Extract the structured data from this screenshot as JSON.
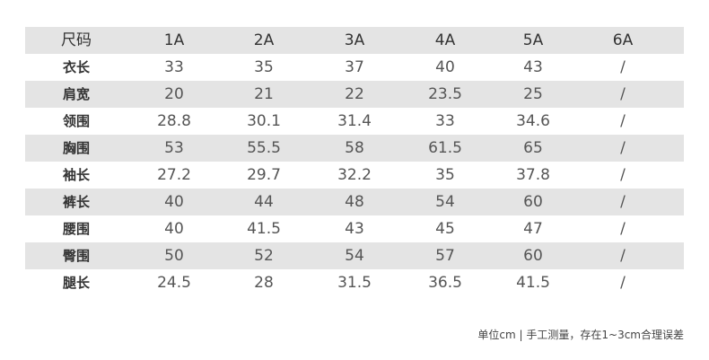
{
  "table": {
    "header": [
      "尺码",
      "1A",
      "2A",
      "3A",
      "4A",
      "5A",
      "6A"
    ],
    "rows": [
      [
        "衣长",
        "33",
        "35",
        "37",
        "40",
        "43",
        "/"
      ],
      [
        "肩宽",
        "20",
        "21",
        "22",
        "23.5",
        "25",
        "/"
      ],
      [
        "领围",
        "28.8",
        "30.1",
        "31.4",
        "33",
        "34.6",
        "/"
      ],
      [
        "胸围",
        "53",
        "55.5",
        "58",
        "61.5",
        "65",
        "/"
      ],
      [
        "袖长",
        "27.2",
        "29.7",
        "32.2",
        "35",
        "37.8",
        "/"
      ],
      [
        "裤长",
        "40",
        "44",
        "48",
        "54",
        "60",
        "/"
      ],
      [
        "腰围",
        "40",
        "41.5",
        "43",
        "45",
        "47",
        "/"
      ],
      [
        "臀围",
        "50",
        "52",
        "54",
        "57",
        "60",
        "/"
      ],
      [
        "腿长",
        "24.5",
        "28",
        "31.5",
        "36.5",
        "41.5",
        "/"
      ]
    ]
  },
  "footer": "单位cm | 手工测量，存在1~3cm合理误差"
}
